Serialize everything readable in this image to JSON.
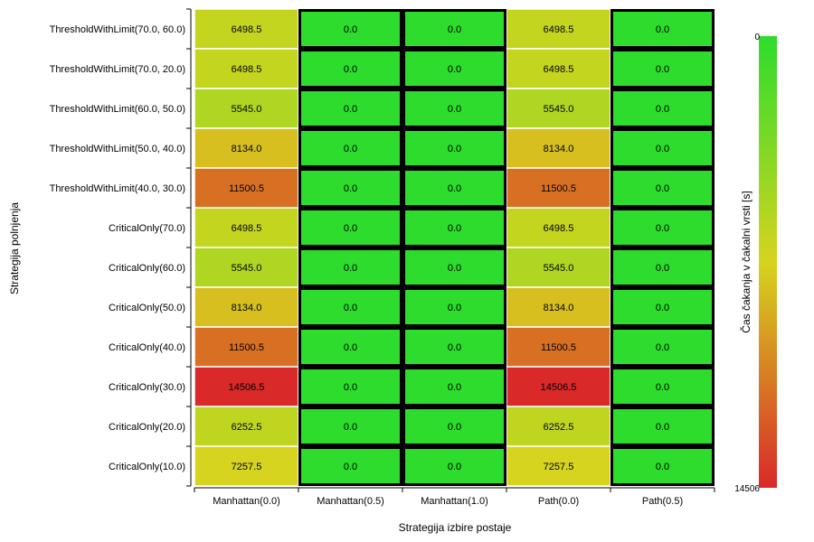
{
  "chart_data": {
    "type": "heatmap",
    "xlabel": "Strategija izbire postaje",
    "ylabel": "Strategija polnjenja",
    "colorbar_label": "Čas čakanja v čakalni vrsti [s]",
    "colorbar_range": [
      0,
      14506
    ],
    "colorbar_tick_labels": [
      "0",
      "14506"
    ],
    "colormap": [
      "#2ddc2d",
      "#d6d41e",
      "#d92929"
    ],
    "x_categories": [
      "Manhattan(0.0)",
      "Manhattan(0.5)",
      "Manhattan(1.0)",
      "Path(0.0)",
      "Path(0.5)"
    ],
    "y_categories": [
      "ThresholdWithLimit(70.0, 60.0)",
      "ThresholdWithLimit(70.0, 20.0)",
      "ThresholdWithLimit(60.0, 50.0)",
      "ThresholdWithLimit(50.0, 40.0)",
      "ThresholdWithLimit(40.0, 30.0)",
      "CriticalOnly(70.0)",
      "CriticalOnly(60.0)",
      "CriticalOnly(50.0)",
      "CriticalOnly(40.0)",
      "CriticalOnly(30.0)",
      "CriticalOnly(20.0)",
      "CriticalOnly(10.0)"
    ],
    "values": [
      [
        6498.5,
        0.0,
        0.0,
        6498.5,
        0.0
      ],
      [
        6498.5,
        0.0,
        0.0,
        6498.5,
        0.0
      ],
      [
        5545.0,
        0.0,
        0.0,
        5545.0,
        0.0
      ],
      [
        8134.0,
        0.0,
        0.0,
        8134.0,
        0.0
      ],
      [
        11500.5,
        0.0,
        0.0,
        11500.5,
        0.0
      ],
      [
        6498.5,
        0.0,
        0.0,
        6498.5,
        0.0
      ],
      [
        5545.0,
        0.0,
        0.0,
        5545.0,
        0.0
      ],
      [
        8134.0,
        0.0,
        0.0,
        8134.0,
        0.0
      ],
      [
        11500.5,
        0.0,
        0.0,
        11500.5,
        0.0
      ],
      [
        14506.5,
        0.0,
        0.0,
        14506.5,
        0.0
      ],
      [
        6252.5,
        0.0,
        0.0,
        6252.5,
        0.0
      ],
      [
        7257.5,
        0.0,
        0.0,
        7257.5,
        0.0
      ]
    ],
    "value_labels": [
      [
        "6498.5",
        "0.0",
        "0.0",
        "6498.5",
        "0.0"
      ],
      [
        "6498.5",
        "0.0",
        "0.0",
        "6498.5",
        "0.0"
      ],
      [
        "5545.0",
        "0.0",
        "0.0",
        "5545.0",
        "0.0"
      ],
      [
        "8134.0",
        "0.0",
        "0.0",
        "8134.0",
        "0.0"
      ],
      [
        "11500.5",
        "0.0",
        "0.0",
        "11500.5",
        "0.0"
      ],
      [
        "6498.5",
        "0.0",
        "0.0",
        "6498.5",
        "0.0"
      ],
      [
        "5545.0",
        "0.0",
        "0.0",
        "5545.0",
        "0.0"
      ],
      [
        "8134.0",
        "0.0",
        "0.0",
        "8134.0",
        "0.0"
      ],
      [
        "11500.5",
        "0.0",
        "0.0",
        "11500.5",
        "0.0"
      ],
      [
        "14506.5",
        "0.0",
        "0.0",
        "14506.5",
        "0.0"
      ],
      [
        "6252.5",
        "0.0",
        "0.0",
        "6252.5",
        "0.0"
      ],
      [
        "7257.5",
        "0.0",
        "0.0",
        "7257.5",
        "0.0"
      ]
    ],
    "outlined_columns": [
      "Manhattan(0.5)",
      "Manhattan(1.0)",
      "Path(0.5)"
    ]
  }
}
